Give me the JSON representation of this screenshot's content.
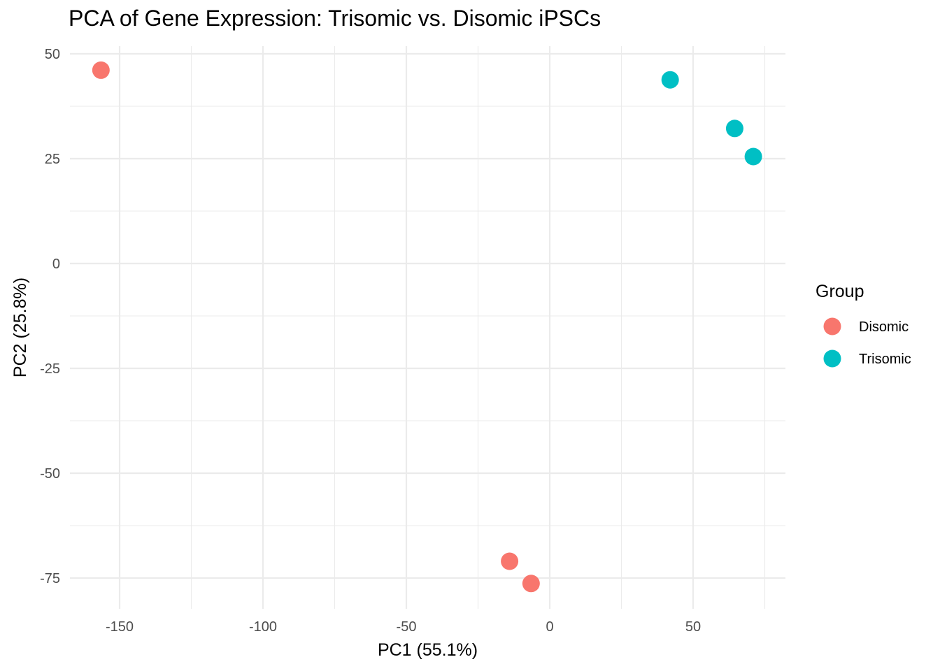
{
  "chart_data": {
    "type": "scatter",
    "title": "PCA of Gene Expression: Trisomic vs. Disomic iPSCs",
    "xlabel": "PC1 (55.1%)",
    "ylabel": "PC2 (25.8%)",
    "xlim": [
      -168,
      82
    ],
    "ylim": [
      -82,
      52
    ],
    "x_ticks": [
      -150,
      -100,
      -50,
      0,
      50
    ],
    "x_tick_labels": [
      "-150",
      "-100",
      "-50",
      "0",
      "50"
    ],
    "x_minor": [
      -125,
      -75,
      -25,
      25,
      75
    ],
    "y_ticks": [
      50,
      25,
      0,
      -25,
      -50,
      -75
    ],
    "y_tick_labels": [
      "50",
      "25",
      "0",
      "-25",
      "-50",
      "-75"
    ],
    "y_minor": [
      37.5,
      12.5,
      -12.5,
      -37.5,
      -62.5
    ],
    "grid": true,
    "legend": {
      "title": "Group",
      "position": "right",
      "entries": [
        "Disomic",
        "Trisomic"
      ]
    },
    "series": [
      {
        "name": "Disomic",
        "color": "#F8766D",
        "points": [
          {
            "x": -156.5,
            "y": 46.1
          },
          {
            "x": -14,
            "y": -71
          },
          {
            "x": -6.5,
            "y": -76.3
          }
        ]
      },
      {
        "name": "Trisomic",
        "color": "#00BFC4",
        "points": [
          {
            "x": 42,
            "y": 43.8
          },
          {
            "x": 64.5,
            "y": 32.2
          },
          {
            "x": 71,
            "y": 25.5
          }
        ]
      }
    ]
  }
}
